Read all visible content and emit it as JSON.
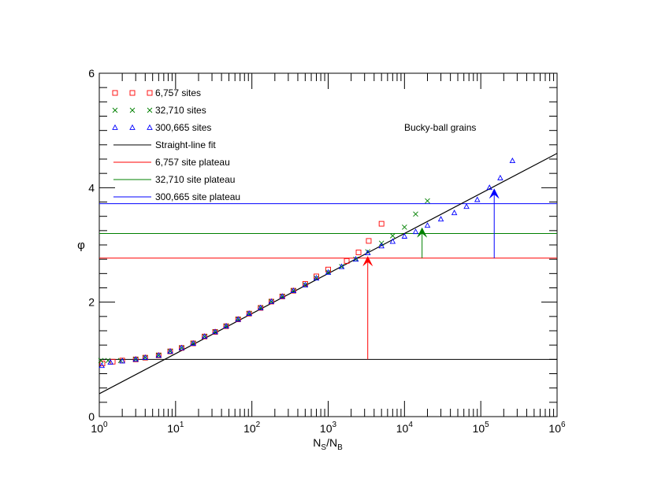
{
  "chart_data": {
    "type": "scatter",
    "xscale": "log",
    "xlim": [
      1,
      1000000
    ],
    "ylim": [
      0,
      6
    ],
    "xlabel": {
      "main": "N",
      "sub1": "S",
      "slash": "/N",
      "sub2": "B"
    },
    "ylabel": "φ",
    "annotation": "Bucky-ball grains",
    "grid": false,
    "legend_position": "top-left",
    "y_ticks": [
      {
        "value": 0,
        "label": "0"
      },
      {
        "value": 2,
        "label": "2"
      },
      {
        "value": 4,
        "label": "4"
      },
      {
        "value": 6,
        "label": "6"
      }
    ],
    "x_ticks": [
      {
        "value": 1,
        "base": "10",
        "exp": "0"
      },
      {
        "value": 10,
        "base": "10",
        "exp": "1"
      },
      {
        "value": 100,
        "base": "10",
        "exp": "2"
      },
      {
        "value": 1000,
        "base": "10",
        "exp": "3"
      },
      {
        "value": 10000,
        "base": "10",
        "exp": "4"
      },
      {
        "value": 100000,
        "base": "10",
        "exp": "5"
      },
      {
        "value": 1000000,
        "base": "10",
        "exp": "6"
      }
    ],
    "series": [
      {
        "name": "6,757 sites",
        "marker": "square",
        "color": "#ff0000",
        "points": [
          [
            1.1,
            0.93
          ],
          [
            1.5,
            0.96
          ],
          [
            2.0,
            0.98
          ],
          [
            3.0,
            1.0
          ],
          [
            4.0,
            1.03
          ],
          [
            6.0,
            1.07
          ],
          [
            8.5,
            1.14
          ],
          [
            12,
            1.2
          ],
          [
            17,
            1.28
          ],
          [
            24,
            1.4
          ],
          [
            33,
            1.48
          ],
          [
            46,
            1.58
          ],
          [
            66,
            1.7
          ],
          [
            92,
            1.8
          ],
          [
            130,
            1.9
          ],
          [
            180,
            2.01
          ],
          [
            250,
            2.1
          ],
          [
            350,
            2.2
          ],
          [
            500,
            2.32
          ],
          [
            700,
            2.45
          ],
          [
            1000,
            2.57
          ],
          [
            1750,
            2.72
          ],
          [
            2500,
            2.87
          ],
          [
            3400,
            3.07
          ],
          [
            5000,
            3.37
          ]
        ]
      },
      {
        "name": "32,710 sites",
        "marker": "cross",
        "color": "#008000",
        "points": [
          [
            1.05,
            0.98
          ],
          [
            1.3,
            0.98
          ],
          [
            1.9,
            0.98
          ],
          [
            3.0,
            1.0
          ],
          [
            4.0,
            1.03
          ],
          [
            6.0,
            1.07
          ],
          [
            8.5,
            1.14
          ],
          [
            12,
            1.2
          ],
          [
            17,
            1.28
          ],
          [
            24,
            1.4
          ],
          [
            33,
            1.48
          ],
          [
            46,
            1.58
          ],
          [
            66,
            1.7
          ],
          [
            92,
            1.8
          ],
          [
            130,
            1.9
          ],
          [
            180,
            2.01
          ],
          [
            250,
            2.1
          ],
          [
            350,
            2.2
          ],
          [
            500,
            2.3
          ],
          [
            700,
            2.42
          ],
          [
            1000,
            2.52
          ],
          [
            1500,
            2.62
          ],
          [
            2300,
            2.75
          ],
          [
            3300,
            2.88
          ],
          [
            5000,
            3.03
          ],
          [
            7000,
            3.16
          ],
          [
            10000,
            3.31
          ],
          [
            14000,
            3.54
          ],
          [
            20000,
            3.77
          ]
        ]
      },
      {
        "name": "300,665 sites",
        "marker": "triangle",
        "color": "#0000ff",
        "points": [
          [
            1.08,
            0.89
          ],
          [
            1.4,
            0.95
          ],
          [
            2.0,
            0.97
          ],
          [
            3.0,
            1.0
          ],
          [
            4.0,
            1.03
          ],
          [
            6.0,
            1.07
          ],
          [
            8.5,
            1.14
          ],
          [
            12,
            1.2
          ],
          [
            17,
            1.28
          ],
          [
            24,
            1.4
          ],
          [
            33,
            1.48
          ],
          [
            46,
            1.58
          ],
          [
            66,
            1.7
          ],
          [
            92,
            1.8
          ],
          [
            130,
            1.9
          ],
          [
            180,
            2.01
          ],
          [
            250,
            2.1
          ],
          [
            350,
            2.2
          ],
          [
            500,
            2.3
          ],
          [
            700,
            2.42
          ],
          [
            1000,
            2.52
          ],
          [
            1500,
            2.62
          ],
          [
            2300,
            2.75
          ],
          [
            3300,
            2.86
          ],
          [
            5000,
            2.98
          ],
          [
            7000,
            3.06
          ],
          [
            10000,
            3.15
          ],
          [
            14000,
            3.23
          ],
          [
            20000,
            3.34
          ],
          [
            30000,
            3.45
          ],
          [
            45000,
            3.56
          ],
          [
            65000,
            3.67
          ],
          [
            90000,
            3.79
          ],
          [
            130000,
            4.0
          ],
          [
            180000,
            4.17
          ],
          [
            260000,
            4.47
          ]
        ]
      }
    ],
    "fit_line": {
      "name": "Straight-line fit",
      "color": "#000000",
      "points": [
        [
          1,
          0.4
        ],
        [
          1000000,
          4.6
        ]
      ]
    },
    "baseline": {
      "y": 1.0,
      "color": "#000000"
    },
    "plateaus": [
      {
        "name": "6,757 site plateau",
        "y": 2.77,
        "color": "#ff0000"
      },
      {
        "name": "32,710 site plateau",
        "y": 3.2,
        "color": "#008000"
      },
      {
        "name": "300,665 site plateau",
        "y": 3.72,
        "color": "#0000ff"
      }
    ],
    "arrows": [
      {
        "x": 3300,
        "from": 1.0,
        "to": 2.8,
        "color": "#ff0000"
      },
      {
        "x": 17000,
        "from": 2.77,
        "to": 3.3,
        "color": "#008000"
      },
      {
        "x": 150000,
        "from": 2.77,
        "to": 3.98,
        "color": "#0000ff"
      }
    ]
  }
}
